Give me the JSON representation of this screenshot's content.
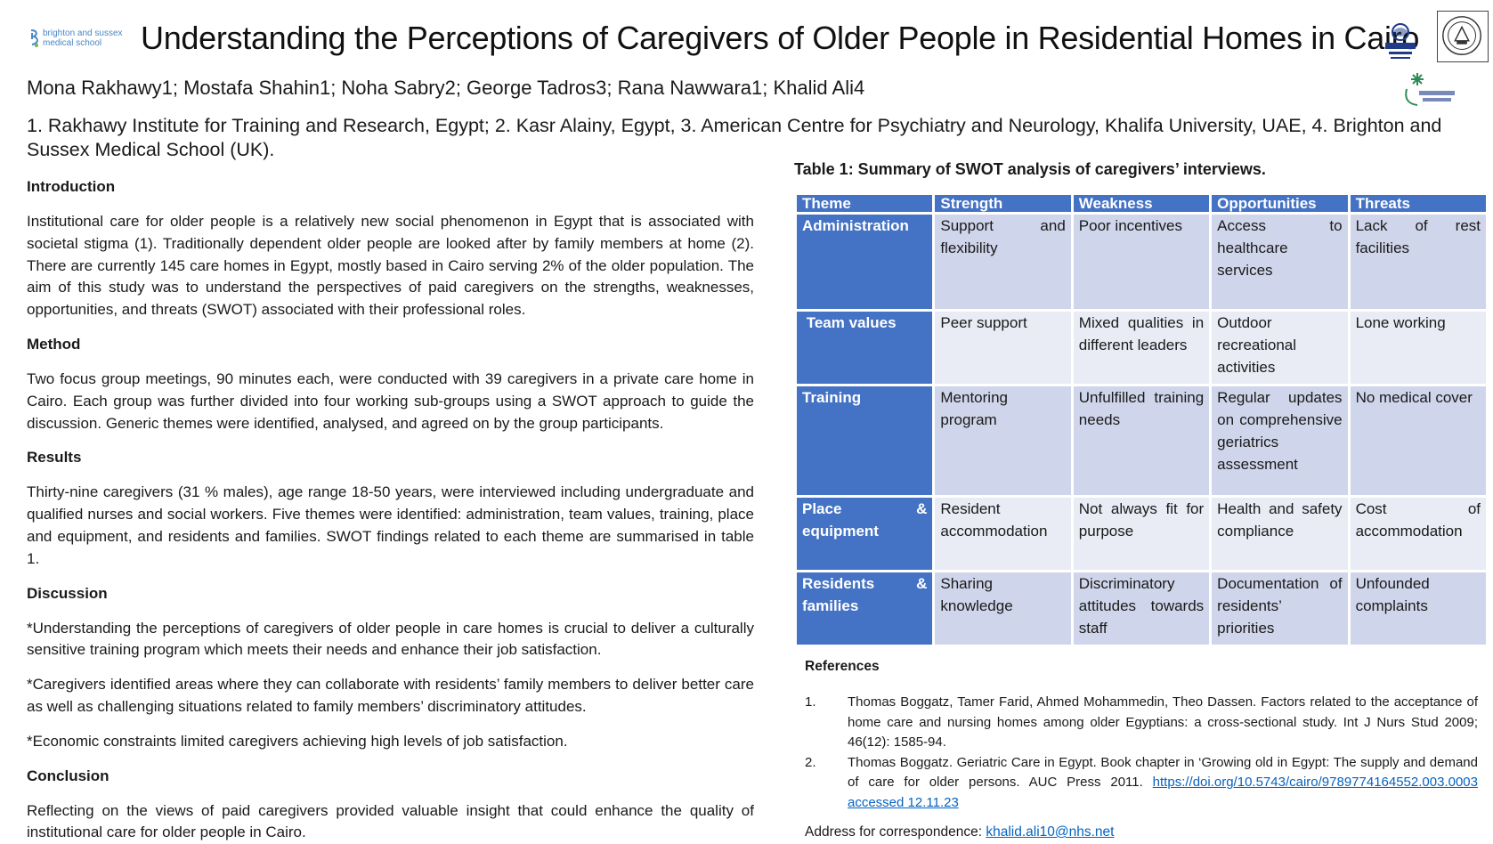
{
  "header": {
    "logo_left_text": [
      "brighton and sussex",
      "medical school"
    ],
    "title": "Understanding the Perceptions of Caregivers of Older People in Residential Homes in Cairo",
    "authors": "Mona Rakhawy1; Mostafa Shahin1; Noha Sabry2; George Tadros3; Rana Nawwara1; Khalid Ali4",
    "affiliations": "1. Rakhawy Institute for Training and Research, Egypt; 2. Kasr Alainy, Egypt, 3. American Centre for Psychiatry and Neurology, Khalifa University, UAE, 4. Brighton and Sussex Medical School (UK)."
  },
  "sections": {
    "introduction": {
      "heading": "Introduction",
      "text": "Institutional care for older people is a relatively new social phenomenon in Egypt that is associated with societal stigma (1). Traditionally dependent older people are looked after by family members at home (2). There are currently 145 care homes in Egypt, mostly based in Cairo serving 2% of the older population. The aim of this study was to understand the perspectives of paid caregivers on the strengths, weaknesses, opportunities, and threats (SWOT) associated with their professional roles."
    },
    "method": {
      "heading": "Method",
      "text": "Two focus group meetings, 90 minutes each, were conducted with 39 caregivers in a private care home in Cairo. Each group was further divided into four working sub-groups using a SWOT approach to guide the discussion. Generic themes were identified, analysed, and agreed on by the group participants."
    },
    "results": {
      "heading": "Results",
      "text": "Thirty-nine caregivers (31 % males), age range 18-50 years, were interviewed including undergraduate and qualified nurses and social workers. Five themes were identified: administration, team values, training, place and equipment, and residents and families. SWOT findings related to each theme are summarised in table 1."
    },
    "discussion": {
      "heading": "Discussion",
      "points": [
        "*Understanding the perceptions of caregivers of older people in care homes is crucial to deliver a culturally sensitive training program which meets their needs and enhance their job satisfaction.",
        "*Caregivers identified areas where they can collaborate with residents’ family members to deliver better care as well as challenging situations related to family members’ discriminatory attitudes.",
        "*Economic constraints limited caregivers achieving high levels of job satisfaction."
      ]
    },
    "conclusion": {
      "heading": "Conclusion",
      "text": "Reflecting on the views of paid caregivers provided valuable insight that could enhance the quality of institutional care for older people in Cairo."
    }
  },
  "table": {
    "caption": "Table 1: Summary of SWOT analysis of caregivers’ interviews.",
    "headers": [
      "Theme",
      "Strength",
      "Weakness",
      "Opportunities",
      "Threats"
    ],
    "rows": [
      [
        "Administration",
        "Support and flexibility",
        "Poor incentives",
        "Access to healthcare services",
        "Lack of rest facilities"
      ],
      [
        " Team values",
        "Peer support",
        "Mixed qualities in different leaders",
        "Outdoor recreational activities",
        "Lone working"
      ],
      [
        "Training",
        "Mentoring program",
        "Unfulfilled training needs",
        "Regular updates on comprehensive geriatrics assessment",
        "No medical cover"
      ],
      [
        "Place & equipment",
        "Resident accommodation",
        "Not always fit for purpose",
        "Health and safety compliance",
        "Cost of accommodation"
      ],
      [
        "Residents & families",
        "Sharing knowledge",
        "Discriminatory attitudes towards staff",
        "Documentation of residents’ priorities",
        "Unfounded complaints"
      ]
    ]
  },
  "references": {
    "heading": "References",
    "items": [
      {
        "num": "1.",
        "text": "Thomas Boggatz, Tamer Farid, Ahmed Mohammedin, Theo Dassen.  Factors related to the acceptance of home care and nursing homes among older Egyptians: a cross-sectional study. Int J Nurs Stud 2009; 46(12): 1585-94.",
        "link": ""
      },
      {
        "num": "2.",
        "text": "Thomas Boggatz. Geriatric Care in Egypt. Book chapter in ‘Growing old in Egypt: The supply and demand of care for older persons. AUC Press 2011.",
        "link": "https://doi.org/10.5743/cairo/9789774164552.003.0003 accessed 12.11.23"
      }
    ]
  },
  "correspondence": {
    "label": "Address for correspondence: ",
    "email": "khalid.ali10@nhs.net"
  },
  "colors": {
    "table_header": "#4472c4",
    "table_band_odd": "#cfd5ea",
    "table_band_even": "#e9ebf5",
    "link": "#0563c1",
    "bsms_logo": "#4a86c5"
  },
  "icons": [
    "bsms-logo",
    "rakhawy-logo",
    "university-seal",
    "american-center-logo"
  ]
}
